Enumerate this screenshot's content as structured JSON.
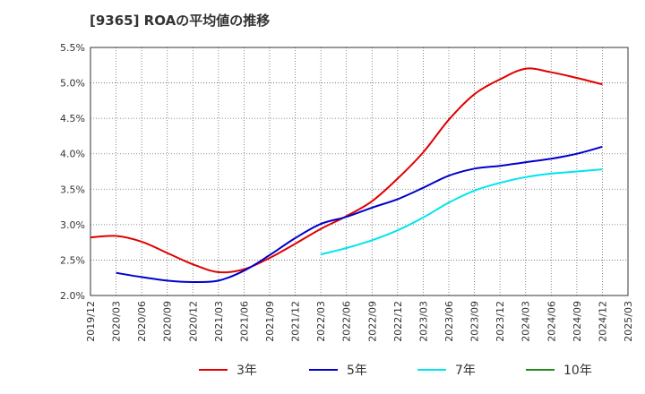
{
  "chart_data": {
    "type": "line",
    "title": "[9365]  ROAの平均値の推移",
    "xlabel": "",
    "ylabel": "",
    "ylim": [
      2.0,
      5.5
    ],
    "x": [
      "2019/12",
      "2020/03",
      "2020/06",
      "2020/09",
      "2020/12",
      "2021/03",
      "2021/06",
      "2021/09",
      "2021/12",
      "2022/03",
      "2022/06",
      "2022/09",
      "2022/12",
      "2023/03",
      "2023/06",
      "2023/09",
      "2023/12",
      "2024/03",
      "2024/06",
      "2024/09",
      "2024/12",
      "2025/03"
    ],
    "y_ticks": [
      "2.0%",
      "2.5%",
      "3.0%",
      "3.5%",
      "4.0%",
      "4.5%",
      "5.0%",
      "5.5%"
    ],
    "y_tick_values": [
      2.0,
      2.5,
      3.0,
      3.5,
      4.0,
      4.5,
      5.0,
      5.5
    ],
    "grid": true,
    "legend_position": "bottom",
    "series": [
      {
        "name": "3年",
        "color": "#e00000",
        "values": [
          2.82,
          2.84,
          2.76,
          2.6,
          2.44,
          2.33,
          2.37,
          2.53,
          2.73,
          2.94,
          3.12,
          3.33,
          3.65,
          4.02,
          4.48,
          4.84,
          5.05,
          5.2,
          5.15,
          5.07,
          4.98,
          null
        ]
      },
      {
        "name": "5年",
        "color": "#0000cc",
        "values": [
          null,
          2.32,
          2.26,
          2.21,
          2.19,
          2.21,
          2.35,
          2.57,
          2.81,
          3.01,
          3.11,
          3.24,
          3.36,
          3.52,
          3.69,
          3.79,
          3.83,
          3.88,
          3.93,
          4.0,
          4.1,
          null
        ]
      },
      {
        "name": "7年",
        "color": "#00e5ee",
        "values": [
          null,
          null,
          null,
          null,
          null,
          null,
          null,
          null,
          null,
          2.58,
          2.67,
          2.78,
          2.92,
          3.1,
          3.31,
          3.48,
          3.59,
          3.67,
          3.72,
          3.75,
          3.78,
          null
        ]
      },
      {
        "name": "10年",
        "color": "#228B22",
        "values": [
          null,
          null,
          null,
          null,
          null,
          null,
          null,
          null,
          null,
          null,
          null,
          null,
          null,
          null,
          null,
          null,
          null,
          null,
          null,
          null,
          null,
          null
        ]
      }
    ]
  }
}
